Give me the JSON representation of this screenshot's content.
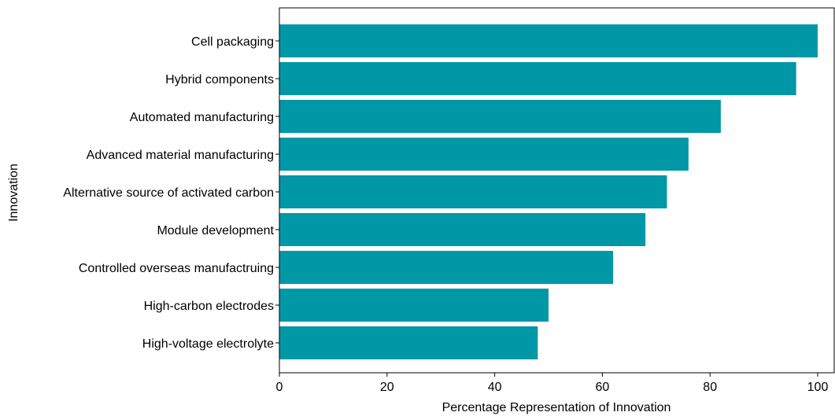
{
  "chart_data": {
    "type": "bar",
    "orientation": "horizontal",
    "categories": [
      "Cell packaging",
      "Hybrid components",
      "Automated manufacturing",
      "Advanced material manufacturing",
      "Alternative source of activated carbon",
      "Module development",
      "Controlled overseas manufactruing",
      "High-carbon electrodes",
      "High-voltage electrolyte"
    ],
    "values": [
      100,
      96,
      82,
      76,
      72,
      68,
      62,
      50,
      48
    ],
    "xlabel": "Percentage Representation of Innovation",
    "ylabel": "Innovation",
    "xlim": [
      0,
      102
    ],
    "xticks": [
      "0",
      "20",
      "40",
      "60",
      "80",
      "100"
    ],
    "grid": false,
    "color": "#0097a7"
  }
}
